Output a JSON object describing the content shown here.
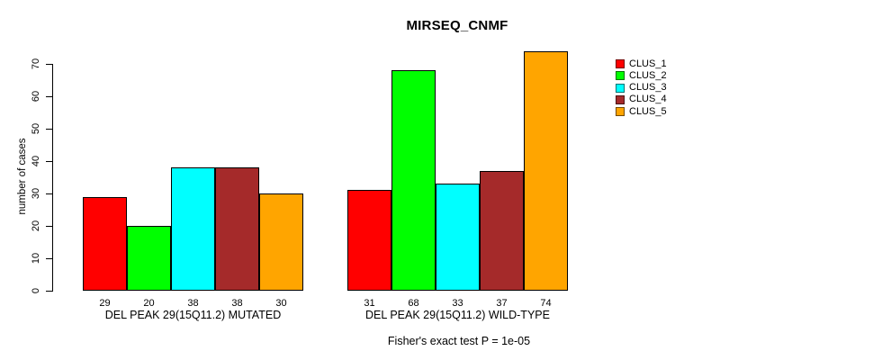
{
  "figure_background": "#ffffff",
  "chart_data": {
    "type": "bar",
    "title": "MIRSEQ_CNMF",
    "ylabel": "number of cases",
    "xlabel": "",
    "ylim": [
      0,
      70
    ],
    "yticks": [
      0,
      10,
      20,
      30,
      40,
      50,
      60,
      70
    ],
    "grid": false,
    "legend_position": "right",
    "bar_value_labels_shown": true,
    "categories": [
      "DEL PEAK 29(15Q11.2) MUTATED",
      "DEL PEAK 29(15Q11.2) WILD-TYPE"
    ],
    "series": [
      {
        "name": "CLUS_1",
        "color": "#ff0000",
        "values": [
          29,
          31
        ]
      },
      {
        "name": "CLUS_2",
        "color": "#00ff00",
        "values": [
          20,
          68
        ]
      },
      {
        "name": "CLUS_3",
        "color": "#00ffff",
        "values": [
          38,
          33
        ]
      },
      {
        "name": "CLUS_4",
        "color": "#a52a2a",
        "values": [
          38,
          37
        ]
      },
      {
        "name": "CLUS_5",
        "color": "#ffa500",
        "values": [
          30,
          74
        ]
      }
    ],
    "annotation": "Fisher's exact test P = 1e-05"
  },
  "legend": {
    "items": [
      {
        "label": "CLUS_1",
        "color": "#ff0000"
      },
      {
        "label": "CLUS_2",
        "color": "#00ff00"
      },
      {
        "label": "CLUS_3",
        "color": "#00ffff"
      },
      {
        "label": "CLUS_4",
        "color": "#a52a2a"
      },
      {
        "label": "CLUS_5",
        "color": "#ffa500"
      }
    ]
  }
}
